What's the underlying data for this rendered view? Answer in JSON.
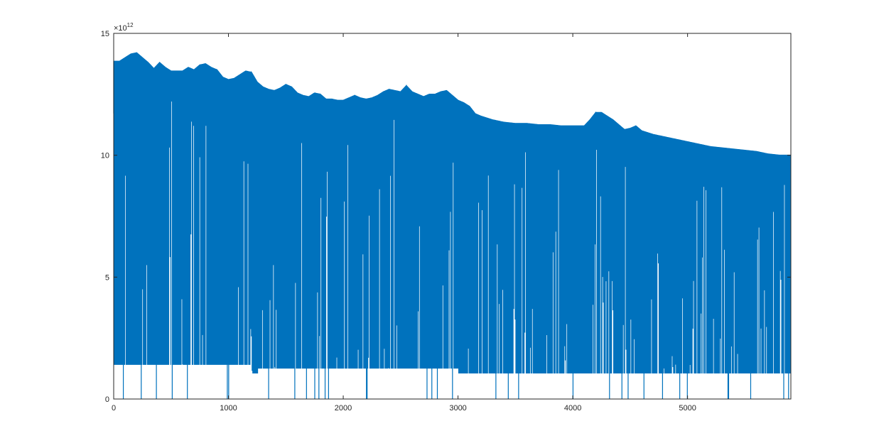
{
  "chart_data": {
    "type": "line",
    "title": "",
    "xlabel": "",
    "ylabel": "",
    "xlim": [
      0,
      5900
    ],
    "ylim": [
      0,
      15
    ],
    "y_exponent_label": "×10",
    "y_exponent_power": "12",
    "x_ticks": [
      {
        "value": 0,
        "label": "0"
      },
      {
        "value": 1000,
        "label": "1000"
      },
      {
        "value": 2000,
        "label": "2000"
      },
      {
        "value": 3000,
        "label": "3000"
      },
      {
        "value": 4000,
        "label": "4000"
      },
      {
        "value": 5000,
        "label": "5000"
      }
    ],
    "y_ticks": [
      {
        "value": 0,
        "label": "0"
      },
      {
        "value": 5,
        "label": "5"
      },
      {
        "value": 10,
        "label": "10"
      },
      {
        "value": 15,
        "label": "15"
      }
    ],
    "grid": false,
    "series_color": "#0072BD",
    "series": [
      {
        "name": "",
        "envelope_x": [
          0,
          50,
          100,
          150,
          200,
          250,
          300,
          350,
          400,
          450,
          500,
          550,
          600,
          650,
          700,
          750,
          800,
          850,
          900,
          950,
          1000,
          1050,
          1100,
          1150,
          1200,
          1250,
          1300,
          1350,
          1400,
          1450,
          1500,
          1550,
          1600,
          1650,
          1700,
          1750,
          1800,
          1850,
          1900,
          1950,
          2000,
          2050,
          2100,
          2150,
          2200,
          2250,
          2300,
          2350,
          2400,
          2450,
          2500,
          2550,
          2600,
          2650,
          2700,
          2750,
          2800,
          2850,
          2900,
          2950,
          3000,
          3050,
          3100,
          3150,
          3200,
          3300,
          3400,
          3500,
          3600,
          3700,
          3800,
          3900,
          4000,
          4100,
          4150,
          4200,
          4250,
          4300,
          4350,
          4400,
          4450,
          4500,
          4550,
          4600,
          4700,
          4800,
          4900,
          5000,
          5100,
          5200,
          5300,
          5400,
          5500,
          5600,
          5700,
          5800,
          5900
        ],
        "envelope_y": [
          13.85,
          13.85,
          14.0,
          14.15,
          14.2,
          14.0,
          13.8,
          13.55,
          13.8,
          13.6,
          13.45,
          13.45,
          13.45,
          13.6,
          13.5,
          13.7,
          13.75,
          13.6,
          13.5,
          13.2,
          13.1,
          13.15,
          13.3,
          13.45,
          13.4,
          13.0,
          12.8,
          12.7,
          12.65,
          12.75,
          12.9,
          12.8,
          12.55,
          12.45,
          12.4,
          12.55,
          12.5,
          12.3,
          12.3,
          12.25,
          12.25,
          12.35,
          12.45,
          12.35,
          12.3,
          12.35,
          12.45,
          12.6,
          12.7,
          12.65,
          12.6,
          12.85,
          12.6,
          12.5,
          12.4,
          12.5,
          12.5,
          12.6,
          12.65,
          12.45,
          12.25,
          12.15,
          12.0,
          11.7,
          11.6,
          11.45,
          11.35,
          11.3,
          11.3,
          11.25,
          11.25,
          11.2,
          11.2,
          11.2,
          11.45,
          11.75,
          11.75,
          11.6,
          11.45,
          11.25,
          11.05,
          11.1,
          11.2,
          11.0,
          10.85,
          10.75,
          10.65,
          10.55,
          10.45,
          10.35,
          10.3,
          10.25,
          10.2,
          10.15,
          10.05,
          10.0,
          10.0
        ],
        "baseline_segments": [
          {
            "x_start": 0,
            "x_end": 1200,
            "value": 1.4
          },
          {
            "x_start": 1260,
            "x_end": 3000,
            "value": 1.25
          },
          {
            "x_start": 3000,
            "x_end": 5900,
            "value": 1.05
          }
        ],
        "zero_drop_x": [
          85,
          240,
          370,
          510,
          640,
          990,
          1000,
          1350,
          1580,
          1680,
          1750,
          1790,
          1840,
          1870,
          2200,
          2210,
          2730,
          2770,
          2820,
          2950,
          3330,
          3440,
          3530,
          4000,
          4320,
          4430,
          4480,
          4620,
          4780,
          4930,
          5000,
          5350,
          5360,
          5550,
          5840,
          5880
        ]
      }
    ]
  }
}
